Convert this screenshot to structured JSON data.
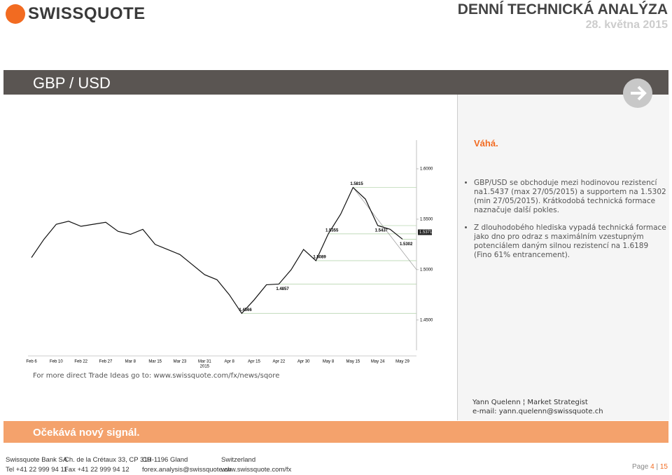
{
  "header": {
    "logo": "SWISSQUOTE",
    "title": "DENNÍ TECHNICKÁ ANALÝZA",
    "date": "28. května 2015"
  },
  "section": {
    "title": "GBP / USD",
    "verdict": "Váhá.",
    "bullets": [
      "GBP/USD se obchoduje mezi hodinovou rezistencí na1.5437 (max 27/05/2015) a supportem na 1.5302 (min 27/05/2015). Krátkodobá technická formace naznačuje další pokles.",
      "Z dlouhodobého hlediska vypadá technická formace jako dno pro odraz s maximálním vzestupným potenciálem daným silnou rezistencí na 1.6189 (Fino 61% entrancement)."
    ],
    "link": "For more direct Trade Ideas go to: www.swissquote.com/fx/news/sqore",
    "author": "Yann Quelenn ¦ Market Strategist",
    "email": "e-mail: yann.quelenn@swissquote.ch",
    "signal": "Očekává nový signál."
  },
  "chart_data": {
    "type": "line",
    "year": "2015",
    "categories": [
      "Feb 6",
      null,
      "Feb 10",
      null,
      "Feb 22",
      null,
      "Feb 27",
      null,
      "Mar 8",
      null,
      "Mar 15",
      null,
      "Mar 23",
      null,
      "Mar 31",
      null,
      "Apr 8",
      null,
      "Apr 15",
      null,
      "Apr 22",
      null,
      "Apr 30",
      null,
      "May 8",
      null,
      "May 15",
      null,
      "May 24",
      null,
      "May 29"
    ],
    "series": [
      {
        "name": "GBP/USD",
        "color": "#111111",
        "values": [
          1.512,
          1.53,
          1.545,
          1.548,
          1.543,
          1.545,
          1.547,
          1.538,
          1.535,
          1.54,
          1.525,
          1.52,
          1.515,
          1.505,
          1.495,
          1.49,
          1.475,
          1.4566,
          1.47,
          1.485,
          1.4857,
          1.5,
          1.52,
          1.5089,
          1.5355,
          1.555,
          1.5815,
          1.57,
          1.5437,
          1.54,
          1.5302
        ]
      }
    ],
    "ylim": [
      1.42,
      1.625
    ],
    "yticks": [
      {
        "value": 1.6,
        "label": "1.6000"
      },
      {
        "value": 1.55,
        "label": "1.5500"
      },
      {
        "value": 1.5,
        "label": "1.5000"
      },
      {
        "value": 1.45,
        "label": "1.4500"
      }
    ],
    "annotations": [
      {
        "value": 1.5815,
        "label": "1.5815"
      },
      {
        "value": 1.5437,
        "label": "1.5437"
      },
      {
        "value": 1.5355,
        "label": "1.5355"
      },
      {
        "value": 1.5302,
        "label": "1.5302"
      },
      {
        "value": 1.5089,
        "label": "1.5089"
      },
      {
        "value": 1.4857,
        "label": "1.4857"
      },
      {
        "value": 1.4566,
        "label": "1.4566"
      }
    ],
    "last_price": {
      "value": 1.5371,
      "label": "1.5371"
    }
  },
  "footer": {
    "columns": [
      [
        "Swissquote Bank SA",
        "Tel +41 22 999 94 11"
      ],
      [
        "Ch. de la Crétaux 33, CP 319",
        "Fax +41 22 999 94 12"
      ],
      [
        "CH-1196 Gland",
        "forex.analysis@swissquote.ch"
      ],
      [
        "Switzerland",
        "www.swissquote.com/fx"
      ]
    ],
    "page_label": "Page",
    "page": 4,
    "separator": "|",
    "total": 15
  }
}
